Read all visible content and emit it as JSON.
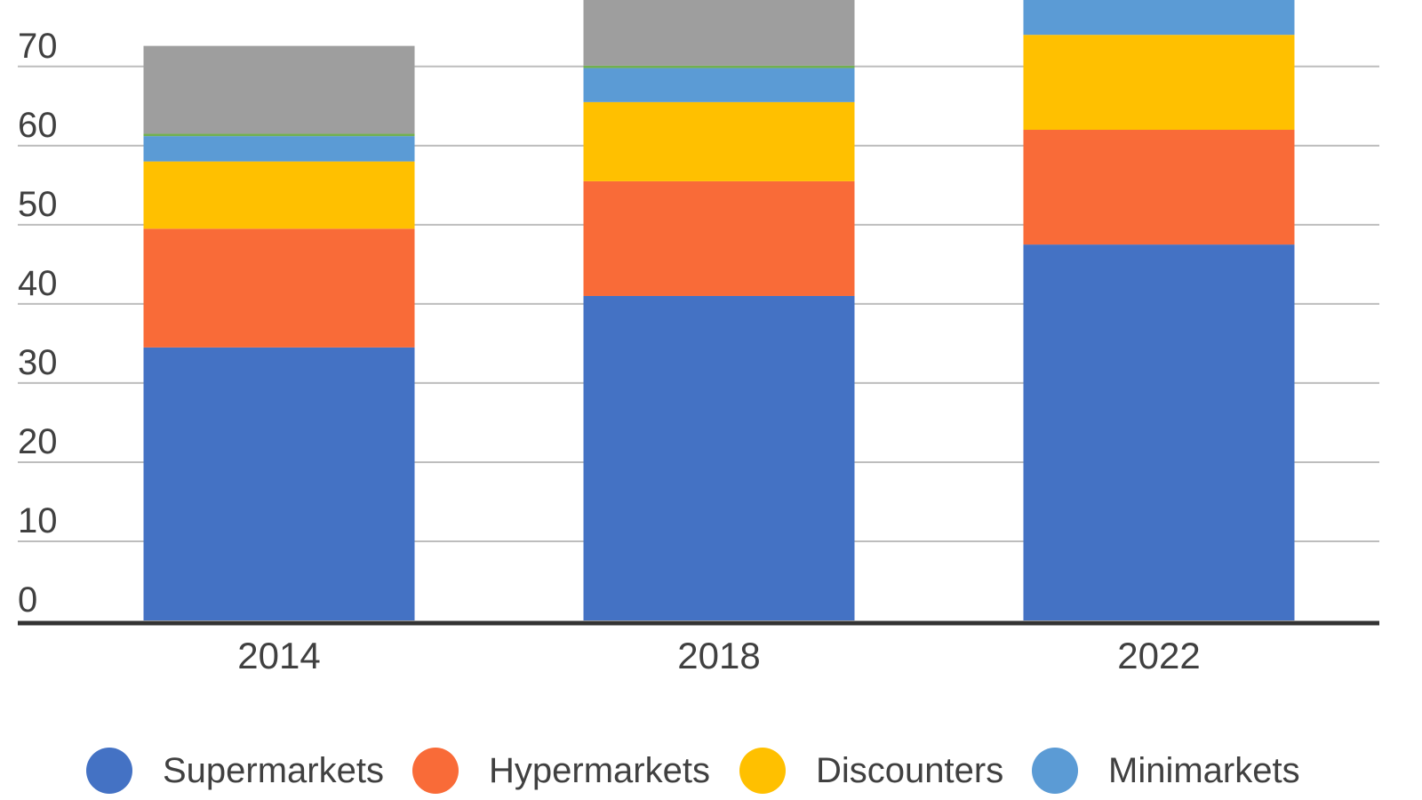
{
  "chart_data": {
    "type": "bar",
    "stacked": true,
    "categories": [
      "2014",
      "2018",
      "2022"
    ],
    "series": [
      {
        "name": "Supermarkets",
        "color": "#4472C4",
        "values": [
          34.5,
          41,
          47.5
        ]
      },
      {
        "name": "Hypermarkets",
        "color": "#F96B38",
        "values": [
          15.0,
          14.5,
          14.5
        ]
      },
      {
        "name": "Discounters",
        "color": "#FFC000",
        "values": [
          8.5,
          10.0,
          12.0
        ]
      },
      {
        "name": "Minimarkets",
        "color": "#5B9BD5",
        "values": [
          3.2,
          4.3,
          5.0
        ]
      },
      {
        "name": "",
        "color": "#72B050",
        "values": [
          0.3,
          0.3,
          0.3
        ]
      },
      {
        "name": "",
        "color": "#9E9E9E",
        "values": [
          11.1,
          10.0,
          3.0
        ]
      }
    ],
    "yticks": [
      "0",
      "10",
      "20",
      "30",
      "40",
      "50",
      "60",
      "70"
    ],
    "ylim": [
      0,
      78.4
    ],
    "grid": true,
    "legend_position": "bottom",
    "title": "",
    "xlabel": "",
    "ylabel": ""
  }
}
